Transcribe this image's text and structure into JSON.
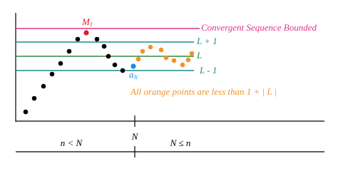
{
  "lines": {
    "bounded": "Convergent Sequence Bounded",
    "upper": "L + 1",
    "limit": "L",
    "lower": "L - 1"
  },
  "labels": {
    "max": {
      "base": "M",
      "sub": "1"
    },
    "term": {
      "base": "a",
      "sub": "N"
    },
    "note": "All orange points are less than 1 + | L |"
  },
  "axis": {
    "tick": "N",
    "before": "n < N",
    "after": "N ≤ n"
  }
}
